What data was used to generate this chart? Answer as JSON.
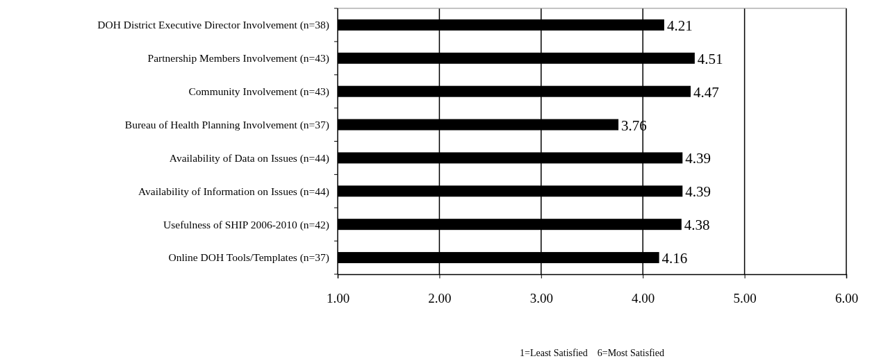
{
  "chart_data": {
    "type": "bar",
    "orientation": "horizontal",
    "categories": [
      "DOH District Executive Director Involvement (n=38)",
      "Partnership Members Involvement (n=43)",
      "Community Involvement (n=43)",
      "Bureau of Health Planning Involvement (n=37)",
      "Availability of Data on Issues (n=44)",
      "Availability of Information on Issues (n=44)",
      "Usefulness of SHIP 2006-2010 (n=42)",
      "Online DOH Tools/Templates (n=37)"
    ],
    "values": [
      4.21,
      4.51,
      4.47,
      3.76,
      4.39,
      4.39,
      4.38,
      4.16
    ],
    "color": "#000000",
    "xlim": [
      1,
      6
    ],
    "xticks": [
      {
        "value": 1,
        "label": "1.00"
      },
      {
        "value": 2,
        "label": "2.00"
      },
      {
        "value": 3,
        "label": "3.00"
      },
      {
        "value": 4,
        "label": "4.00"
      },
      {
        "value": 5,
        "label": "5.00"
      },
      {
        "value": 6,
        "label": "6.00"
      }
    ],
    "xlabel": "1=Least Satisfied    6=Most Satisfied",
    "grid": "x",
    "data_labels": true
  }
}
